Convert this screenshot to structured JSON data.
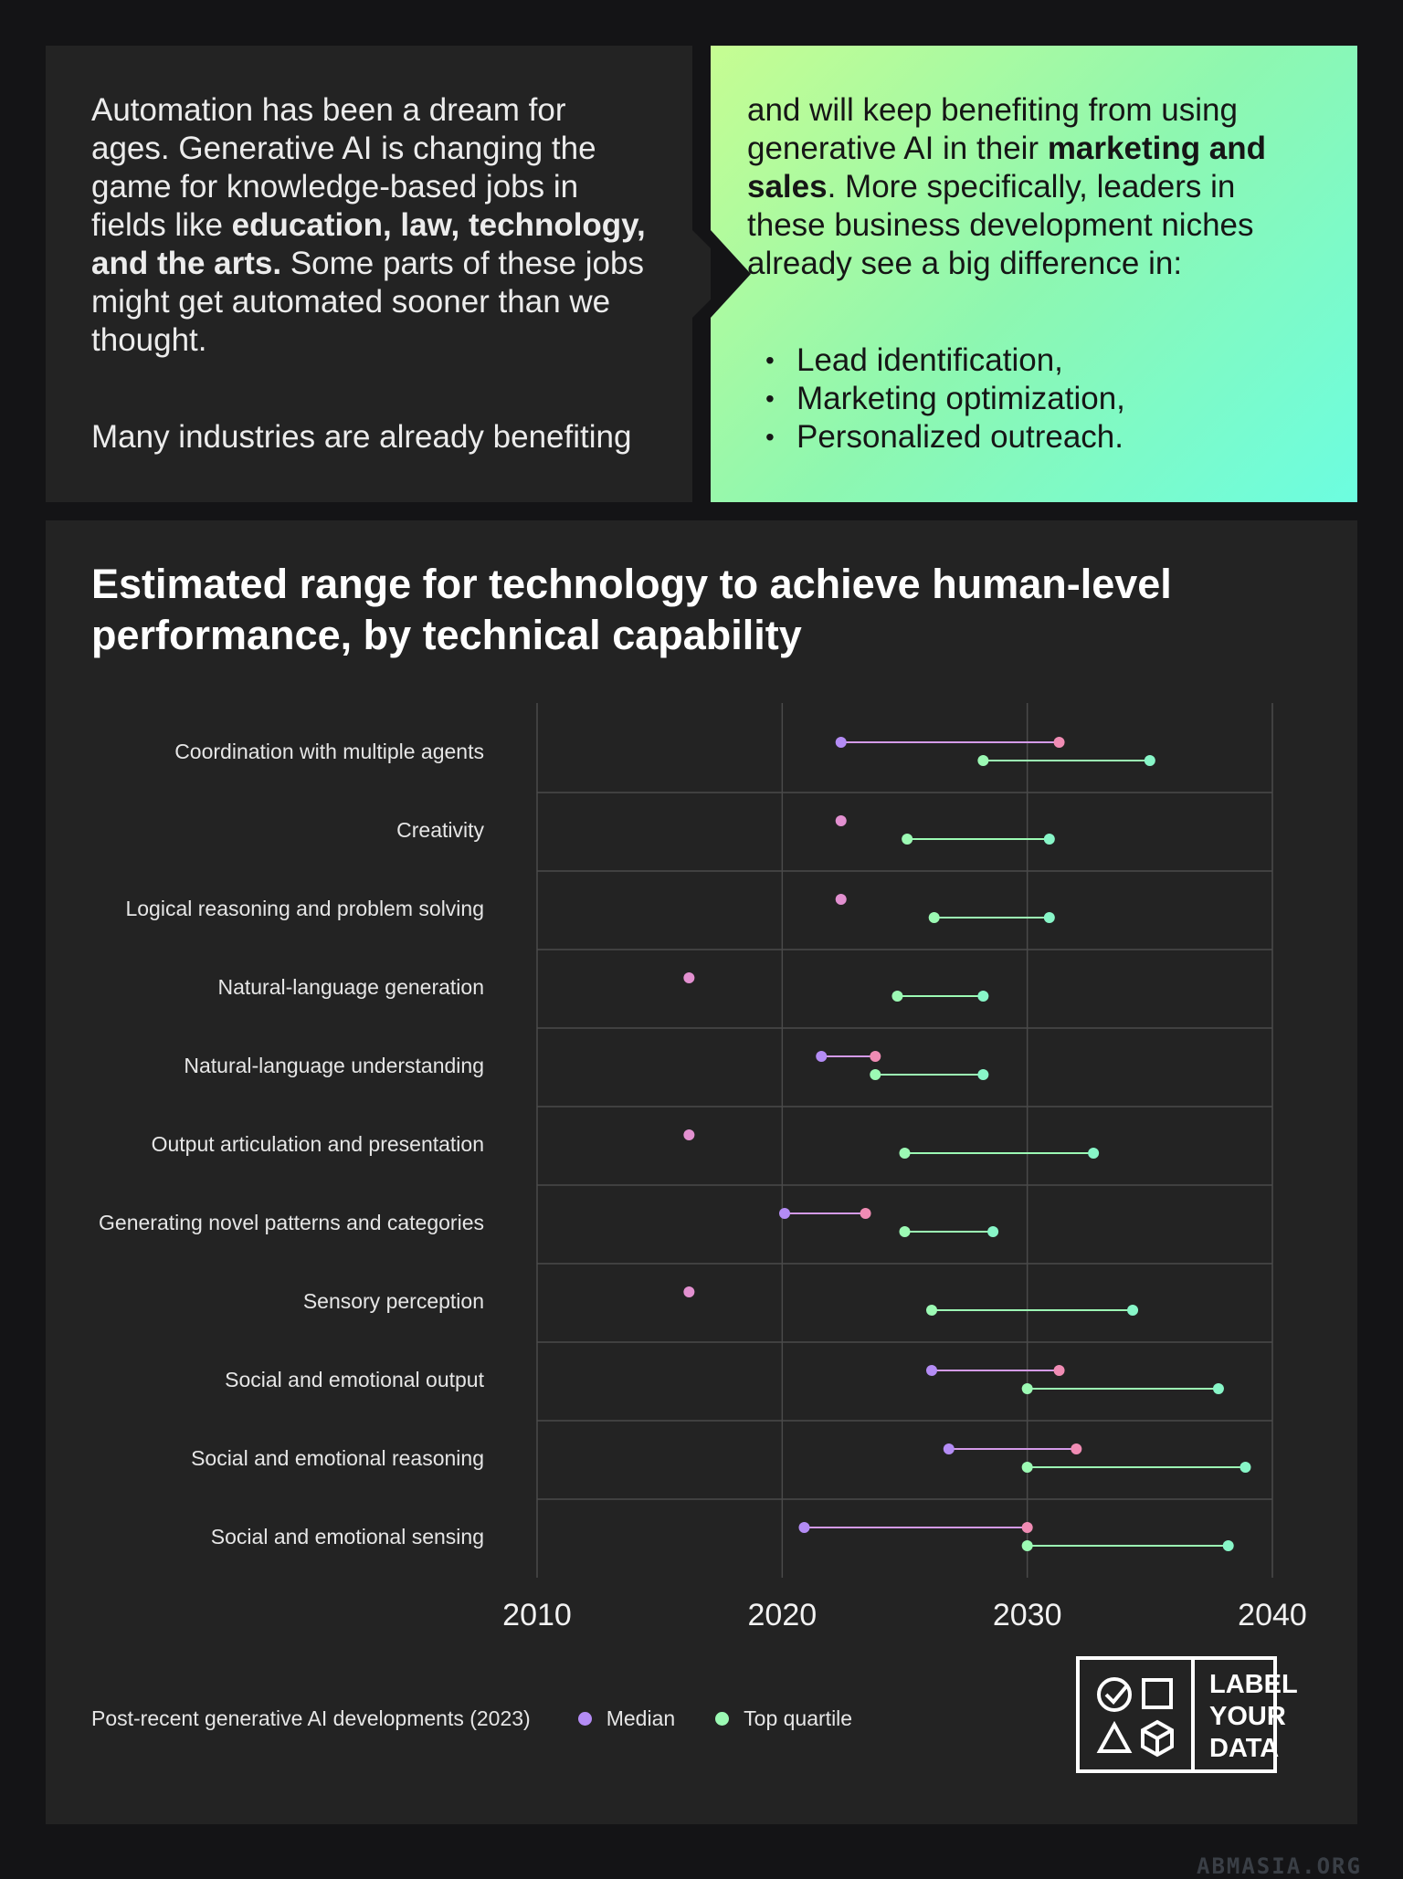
{
  "intro": {
    "left_p1_a": "Automation has been a dream for ages. Generative AI is changing the game for knowledge-based jobs in fields like ",
    "left_p1_bold": "education, law, technology, and the arts.",
    "left_p1_b": " Some parts of these jobs might get automated sooner than we thought.",
    "left_p2": "Many industries are already benefiting",
    "right_a": "and will keep benefiting from using generative AI in their ",
    "right_bold": "marketing and sales",
    "right_b": ". More specifically, leaders in these business development niches already see a big difference in:",
    "bullets": [
      "Lead identification,",
      "Marketing optimization,",
      "Personalized outreach."
    ]
  },
  "colors": {
    "median": "#b48cf5",
    "top_quartile": "#9cfab4",
    "pink": "#f08cb4"
  },
  "chart_data": {
    "type": "dumbbell",
    "title": "Estimated range for technology to achieve human-level performance, by technical capability",
    "xlim": [
      2010,
      2040
    ],
    "x_ticks": [
      2010,
      2020,
      2030,
      2040
    ],
    "grid": true,
    "categories": [
      "Coordination with multiple agents",
      "Creativity",
      "Logical reasoning and problem solving",
      "Natural-language generation",
      "Natural-language understanding",
      "Output articulation and presentation",
      "Generating novel patterns and categories",
      "Sensory perception",
      "Social and emotional output",
      "Social and emotional reasoning",
      "Social and emotional sensing"
    ],
    "median_range": [
      [
        2022.4,
        2031.3
      ],
      [
        2022.4,
        2022.4
      ],
      [
        2022.4,
        2022.4
      ],
      [
        2016.2,
        2016.2
      ],
      [
        2021.6,
        2023.8
      ],
      [
        2016.2,
        2016.2
      ],
      [
        2020.1,
        2023.4
      ],
      [
        2016.2,
        2016.2
      ],
      [
        2026.1,
        2031.3
      ],
      [
        2026.8,
        2032.0
      ],
      [
        2020.9,
        2030.0
      ]
    ],
    "top_quartile_range": [
      [
        2028.2,
        2035.0
      ],
      [
        2025.1,
        2030.9
      ],
      [
        2026.2,
        2030.9
      ],
      [
        2024.7,
        2028.2
      ],
      [
        2023.8,
        2028.2
      ],
      [
        2025.0,
        2032.7
      ],
      [
        2025.0,
        2028.6
      ],
      [
        2026.1,
        2034.3
      ],
      [
        2030.0,
        2037.8
      ],
      [
        2030.0,
        2038.9
      ],
      [
        2030.0,
        2038.2
      ]
    ],
    "legend": {
      "prefix": "Post-recent generative AI developments (2023)",
      "median": "Median",
      "top_quartile": "Top quartile"
    }
  },
  "logo": {
    "line1": "LABEL",
    "line2": "YOUR",
    "line3": "DATA"
  },
  "watermark": "ABMASIA.ORG"
}
